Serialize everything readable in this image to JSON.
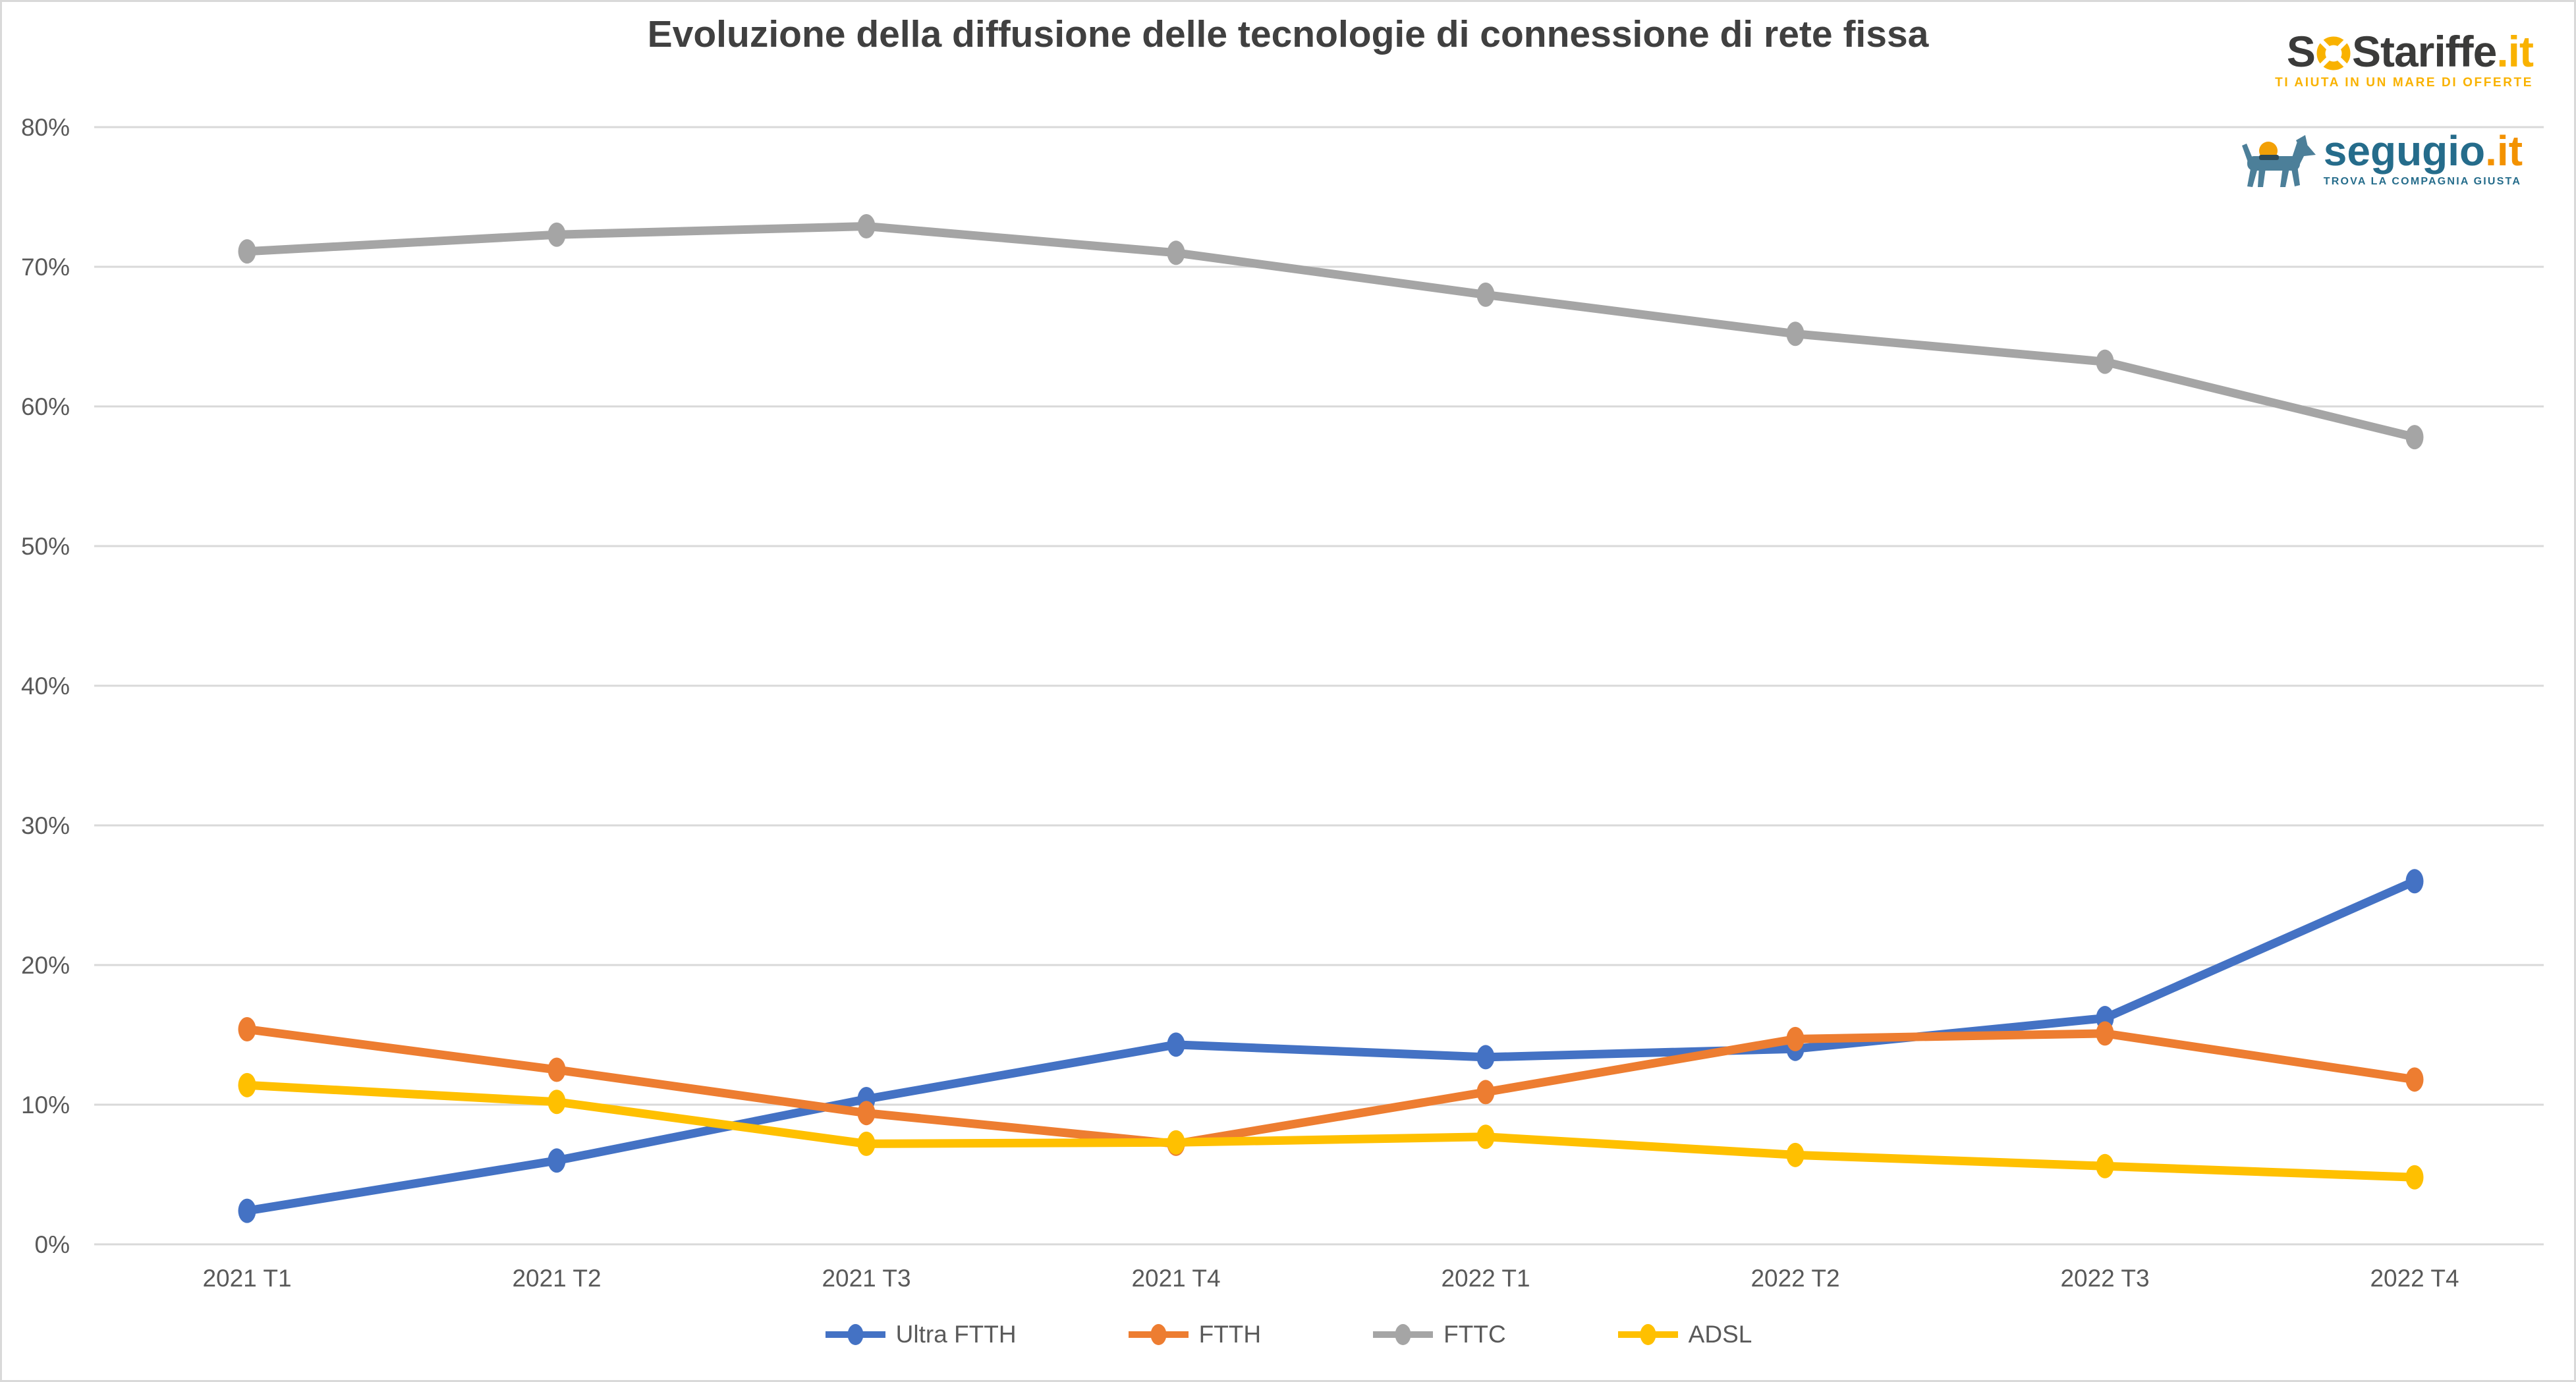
{
  "title": "Evoluzione della diffusione delle tecnologie di connessione di rete fissa",
  "branding": {
    "sostariffe": {
      "seg1": "S",
      "ring_icon": "life-ring-icon",
      "seg2": "S",
      "seg3": "tariffe",
      "tld": ".it",
      "tagline": "TI AIUTA IN UN MARE DI OFFERTE",
      "text_color": "#3B3B3A",
      "accent_color": "#F9B200"
    },
    "segugio": {
      "dog_icon": "dog-icon",
      "name": "segugio",
      "tld": ".it",
      "tagline": "TROVA LA COMPAGNIA GIUSTA",
      "text_color": "#256C8B",
      "accent_color": "#F39200"
    }
  },
  "colors": {
    "background": "#FFFFFF",
    "gridline": "#D9D9D9",
    "axis_text": "#595959",
    "title_text": "#404040"
  },
  "chart_data": {
    "type": "line",
    "categories": [
      "2021 T1",
      "2021 T2",
      "2021 T3",
      "2021 T4",
      "2022 T1",
      "2022 T2",
      "2022 T3",
      "2022 T4"
    ],
    "series": [
      {
        "name": "Ultra FTTH",
        "color": "#4472C4",
        "values": [
          2.4,
          6.0,
          10.4,
          14.3,
          13.4,
          14.0,
          16.2,
          26.0
        ]
      },
      {
        "name": "FTTH",
        "color": "#ED7D31",
        "values": [
          15.4,
          12.5,
          9.4,
          7.2,
          10.9,
          14.7,
          15.1,
          11.8
        ]
      },
      {
        "name": "FTTC",
        "color": "#A5A5A5",
        "values": [
          71.1,
          72.3,
          72.9,
          71.0,
          68.0,
          65.2,
          63.2,
          57.8
        ]
      },
      {
        "name": "ADSL",
        "color": "#FFC000",
        "values": [
          11.4,
          10.2,
          7.2,
          7.3,
          7.7,
          6.4,
          5.6,
          4.8
        ]
      }
    ],
    "ylim": [
      0,
      80
    ],
    "ytick_step": 10,
    "ytick_labels": [
      "0%",
      "10%",
      "20%",
      "30%",
      "40%",
      "50%",
      "60%",
      "70%",
      "80%"
    ],
    "grid": true,
    "legend_position": "bottom",
    "legend_labels": [
      "Ultra FTTH",
      "FTTH",
      "FTTC",
      "ADSL"
    ]
  }
}
